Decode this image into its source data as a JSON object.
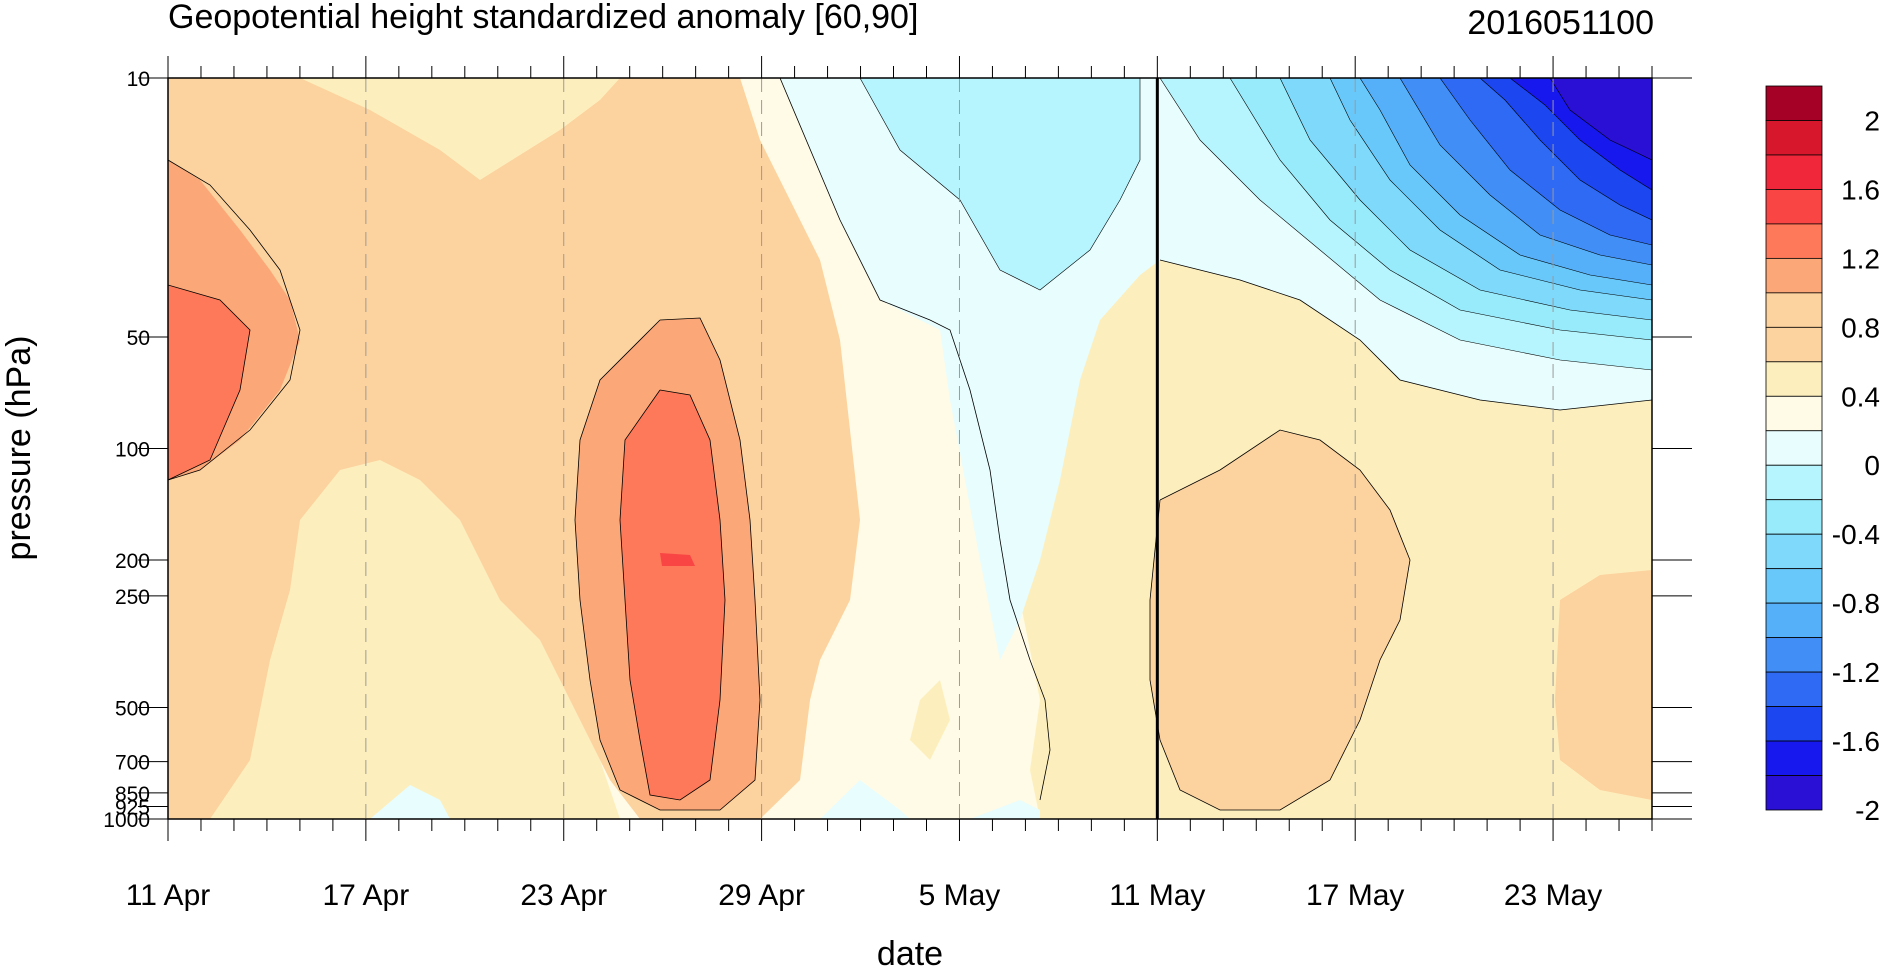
{
  "chart_data": {
    "type": "heatmap",
    "title": "Geopotential height standardized anomaly [60,90]",
    "subtitle": "2016051100",
    "xlabel": "date",
    "ylabel": "pressure (hPa)",
    "x_tick_labels": [
      "11 Apr",
      "17 Apr",
      "23 Apr",
      "29 Apr",
      "5 May",
      "11 May",
      "17 May",
      "23 May"
    ],
    "x_tick_days": [
      0,
      6,
      12,
      18,
      24,
      30,
      36,
      42
    ],
    "x_range_days": [
      0,
      45
    ],
    "current_day": 30,
    "y_tick_labels": [
      "10",
      "50",
      "100",
      "200",
      "250",
      "500",
      "700",
      "850",
      "925",
      "1000"
    ],
    "y_tick_values": [
      10,
      50,
      100,
      200,
      250,
      500,
      700,
      850,
      925,
      1000
    ],
    "y_range": [
      10,
      1000
    ],
    "y_scale": "log",
    "y_inverted": true,
    "colorbar": {
      "labels": [
        "2",
        "1.6",
        "1.2",
        "0.8",
        "0.4",
        "0",
        "-0.4",
        "-0.8",
        "-1.2",
        "-1.6",
        "-2"
      ],
      "levels": [
        2.2,
        2.0,
        1.8,
        1.6,
        1.4,
        1.2,
        1.0,
        0.8,
        0.6,
        0.4,
        0.2,
        0.0,
        -0.2,
        -0.4,
        -0.6,
        -0.8,
        -1.0,
        -1.2,
        -1.4,
        -1.6,
        -1.8,
        -2.0,
        -2.2
      ],
      "colors": [
        "#a50026",
        "#d7172c",
        "#f0263a",
        "#fa4545",
        "#fd7959",
        "#fca777",
        "#fcd29e",
        "#fcd29e",
        "#fdefbd",
        "#fffbe6",
        "#e8fdfe",
        "#b6f5fd",
        "#98ebfb",
        "#7fd9fb",
        "#69c8fa",
        "#55b0f9",
        "#418ff6",
        "#2e6af3",
        "#1c46ef",
        "#1718ed",
        "#2a0fd5"
      ]
    },
    "grid": "vertical dashed at date ticks"
  }
}
